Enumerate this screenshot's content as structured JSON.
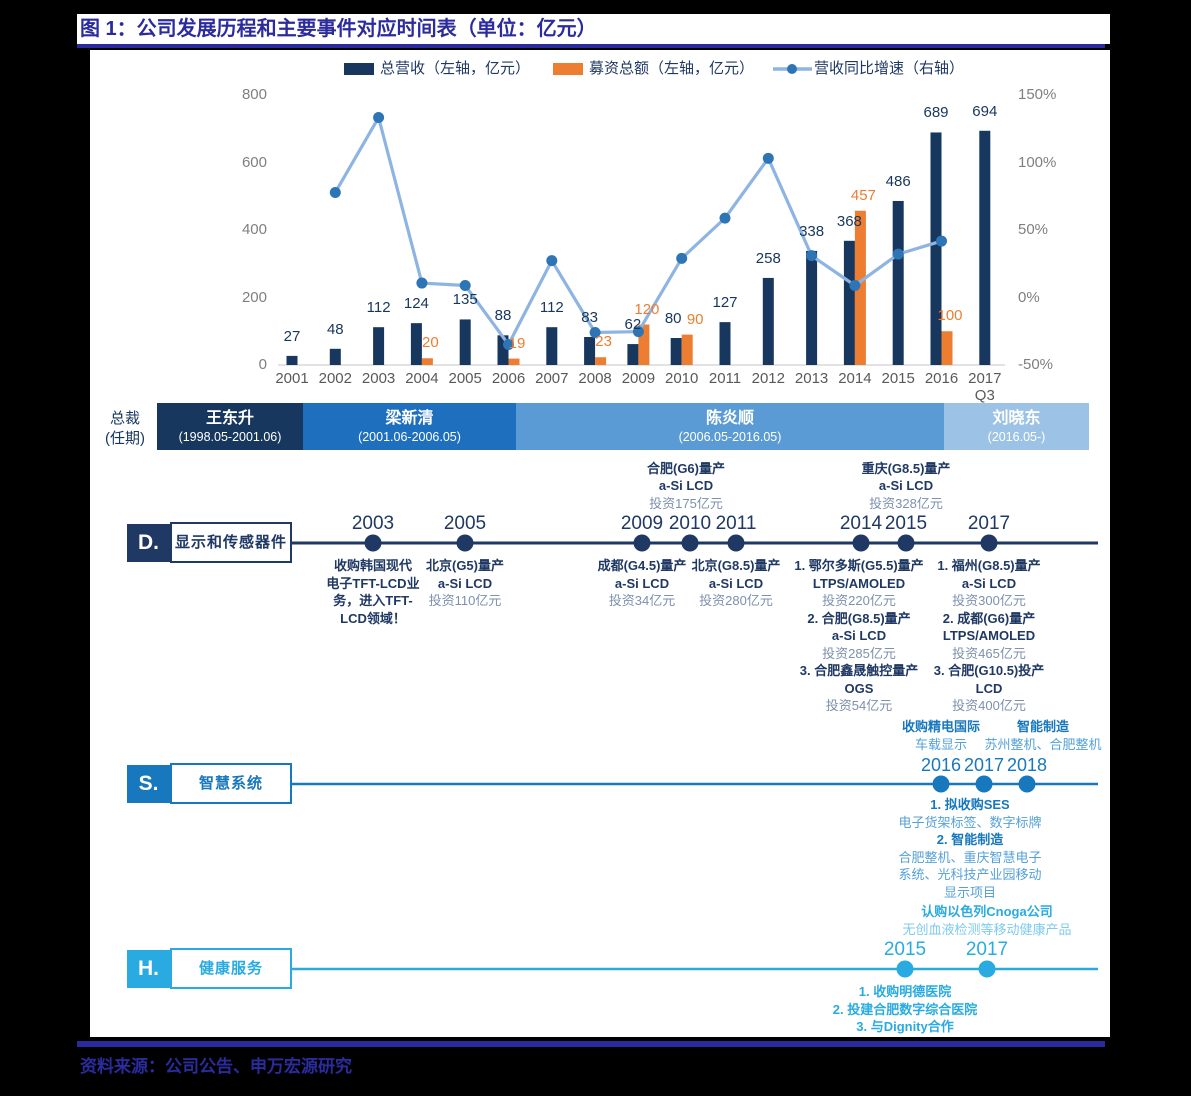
{
  "title": "图 1：公司发展历程和主要事件对应时间表（单位：亿元）",
  "source": "资料来源：公司公告、申万宏源研究",
  "legend": [
    {
      "label": "总营收（左轴，亿元）",
      "color": "#17375e",
      "type": "bar"
    },
    {
      "label": "募资总额（左轴，亿元）",
      "color": "#ed7d31",
      "type": "bar"
    },
    {
      "label": "营收同比增速（右轴）",
      "color": "#8eb4e3",
      "type": "line"
    }
  ],
  "chart_data": {
    "type": "bar+line",
    "categories": [
      "2001",
      "2002",
      "2003",
      "2004",
      "2005",
      "2006",
      "2007",
      "2008",
      "2009",
      "2010",
      "2011",
      "2012",
      "2013",
      "2014",
      "2015",
      "2016",
      "2017"
    ],
    "x_sub_label": {
      "index": 16,
      "text": "Q3"
    },
    "series": [
      {
        "name": "总营收（左轴，亿元）",
        "type": "bar",
        "axis": "left",
        "color": "#17375e",
        "values": [
          27,
          48,
          112,
          124,
          135,
          88,
          112,
          83,
          62,
          80,
          127,
          258,
          338,
          368,
          486,
          689,
          694
        ]
      },
      {
        "name": "募资总额（左轴，亿元）",
        "type": "bar",
        "axis": "left",
        "color": "#ed7d31",
        "values": [
          null,
          null,
          null,
          20,
          null,
          19,
          null,
          23,
          120,
          90,
          null,
          null,
          null,
          457,
          null,
          100,
          null
        ]
      },
      {
        "name": "营收同比增速（右轴）",
        "type": "line",
        "axis": "right",
        "color": "#8eb4e3",
        "values_pct": [
          null,
          77.8,
          133.3,
          10.7,
          8.9,
          -34.8,
          27.3,
          -25.9,
          -25.3,
          29.0,
          58.8,
          103.1,
          31.0,
          8.9,
          32.1,
          41.8,
          null
        ]
      }
    ],
    "left_axis": {
      "ticks": [
        "800",
        "600",
        "400",
        "200",
        "0"
      ],
      "min": 0,
      "max": 800
    },
    "right_axis": {
      "ticks": [
        "150%",
        "100%",
        "50%",
        "0%",
        "-50%"
      ],
      "min": -50,
      "max": 150
    },
    "grid": "off",
    "legend_position": "top"
  },
  "presidents": {
    "row_label_line1": "总裁",
    "row_label_line2": "(任期)",
    "segments": [
      {
        "name": "王东升",
        "term": "(1998.05-2001.06)",
        "color": "#17375e"
      },
      {
        "name": "梁新清",
        "term": "(2001.06-2006.05)",
        "color": "#1f6fbf"
      },
      {
        "name": "陈炎顺",
        "term": "(2006.05-2016.05)",
        "color": "#5b9bd5"
      },
      {
        "name": "刘晓东",
        "term": "(2016.05-)",
        "color": "#9cc3e6"
      }
    ]
  },
  "timelines": [
    {
      "id": "D",
      "badge": "D.",
      "label": "显示和传感器件",
      "color": "#1f3864",
      "light_color": "#7d90ac",
      "events": [
        {
          "year": "2003",
          "side": "below",
          "lines": [
            {
              "t": "收购韩国现代",
              "w": "b"
            },
            {
              "t": "电子TFT-LCD业",
              "w": "b"
            },
            {
              "t": "务，进入TFT-",
              "w": "b"
            },
            {
              "t": "LCD领域！",
              "w": "b"
            }
          ]
        },
        {
          "year": "2005",
          "side": "below",
          "lines": [
            {
              "t": "北京(G5)量产",
              "w": "b"
            },
            {
              "t": "a-Si LCD",
              "w": "b"
            },
            {
              "t": "投资110亿元",
              "w": "l"
            }
          ]
        },
        {
          "year": "2009",
          "side": "below",
          "lines": [
            {
              "t": "成都(G4.5)量产",
              "w": "b"
            },
            {
              "t": "a-Si LCD",
              "w": "b"
            },
            {
              "t": "投资34亿元",
              "w": "l"
            }
          ]
        },
        {
          "year": "2010",
          "side": "above",
          "lines": [
            {
              "t": "合肥(G6)量产",
              "w": "b"
            },
            {
              "t": "a-Si LCD",
              "w": "b"
            },
            {
              "t": "投资175亿元",
              "w": "l"
            }
          ]
        },
        {
          "year": "2011",
          "side": "below",
          "lines": [
            {
              "t": "北京(G8.5)量产",
              "w": "b"
            },
            {
              "t": "a-Si LCD",
              "w": "b"
            },
            {
              "t": "投资280亿元",
              "w": "l"
            }
          ]
        },
        {
          "year": "2014",
          "side": "below",
          "lines": [
            {
              "t": "1. 鄂尔多斯(G5.5)量产",
              "w": "b"
            },
            {
              "t": "LTPS/AMOLED",
              "w": "b"
            },
            {
              "t": "投资220亿元",
              "w": "l"
            },
            {
              "t": "2. 合肥(G8.5)量产",
              "w": "b"
            },
            {
              "t": "a-Si LCD",
              "w": "b"
            },
            {
              "t": "投资285亿元",
              "w": "l"
            },
            {
              "t": "3. 合肥鑫晟触控量产",
              "w": "b"
            },
            {
              "t": "OGS",
              "w": "b"
            },
            {
              "t": "投资54亿元",
              "w": "l"
            }
          ]
        },
        {
          "year": "2015",
          "side": "above",
          "lines": [
            {
              "t": "重庆(G8.5)量产",
              "w": "b"
            },
            {
              "t": "a-Si LCD",
              "w": "b"
            },
            {
              "t": "投资328亿元",
              "w": "l"
            }
          ]
        },
        {
          "year": "2017",
          "side": "below",
          "lines": [
            {
              "t": "1. 福州(G8.5)量产",
              "w": "b"
            },
            {
              "t": "a-Si LCD",
              "w": "b"
            },
            {
              "t": "投资300亿元",
              "w": "l"
            },
            {
              "t": "2. 成都(G6)量产",
              "w": "b"
            },
            {
              "t": "LTPS/AMOLED",
              "w": "b"
            },
            {
              "t": "投资465亿元",
              "w": "l"
            },
            {
              "t": "3. 合肥(G10.5)投产",
              "w": "b"
            },
            {
              "t": "LCD",
              "w": "b"
            },
            {
              "t": "投资400亿元",
              "w": "l"
            }
          ]
        }
      ]
    },
    {
      "id": "S",
      "badge": "S.",
      "label": "智慧系统",
      "color": "#1878be",
      "light_color": "#55a1d8",
      "events": [
        {
          "year": "2016",
          "side": "above",
          "lines": [
            {
              "t": "收购精电国际",
              "w": "b"
            },
            {
              "t": "车载显示",
              "w": "l"
            }
          ]
        },
        {
          "year": "2017",
          "side": "below",
          "lines": [
            {
              "t": "1. 拟收购SES",
              "w": "b"
            },
            {
              "t": "电子货架标签、数字标牌",
              "w": "l"
            },
            {
              "t": "2. 智能制造",
              "w": "b"
            },
            {
              "t": "合肥整机、重庆智慧电子",
              "w": "l"
            },
            {
              "t": "系统、光科技产业园移动",
              "w": "l"
            },
            {
              "t": "显示项目",
              "w": "l"
            }
          ]
        },
        {
          "year": "2018",
          "side": "above",
          "lines": [
            {
              "t": "智能制造",
              "w": "b"
            },
            {
              "t": "苏州整机、合肥整机",
              "w": "l"
            }
          ]
        }
      ]
    },
    {
      "id": "H",
      "badge": "H.",
      "label": "健康服务",
      "color": "#29abe2",
      "light_color": "#7ecaed",
      "events": [
        {
          "year": "2015",
          "side": "below",
          "lines": [
            {
              "t": "1. 收购明德医院",
              "w": "b"
            },
            {
              "t": "2. 投建合肥数字综合医院",
              "w": "b"
            },
            {
              "t": "3. 与Dignity合作",
              "w": "b"
            }
          ]
        },
        {
          "year": "2017",
          "side": "above",
          "lines": [
            {
              "t": "认购以色列Cnoga公司",
              "w": "b"
            },
            {
              "t": "无创血液检测等移动健康产品",
              "w": "l"
            }
          ]
        }
      ]
    }
  ]
}
